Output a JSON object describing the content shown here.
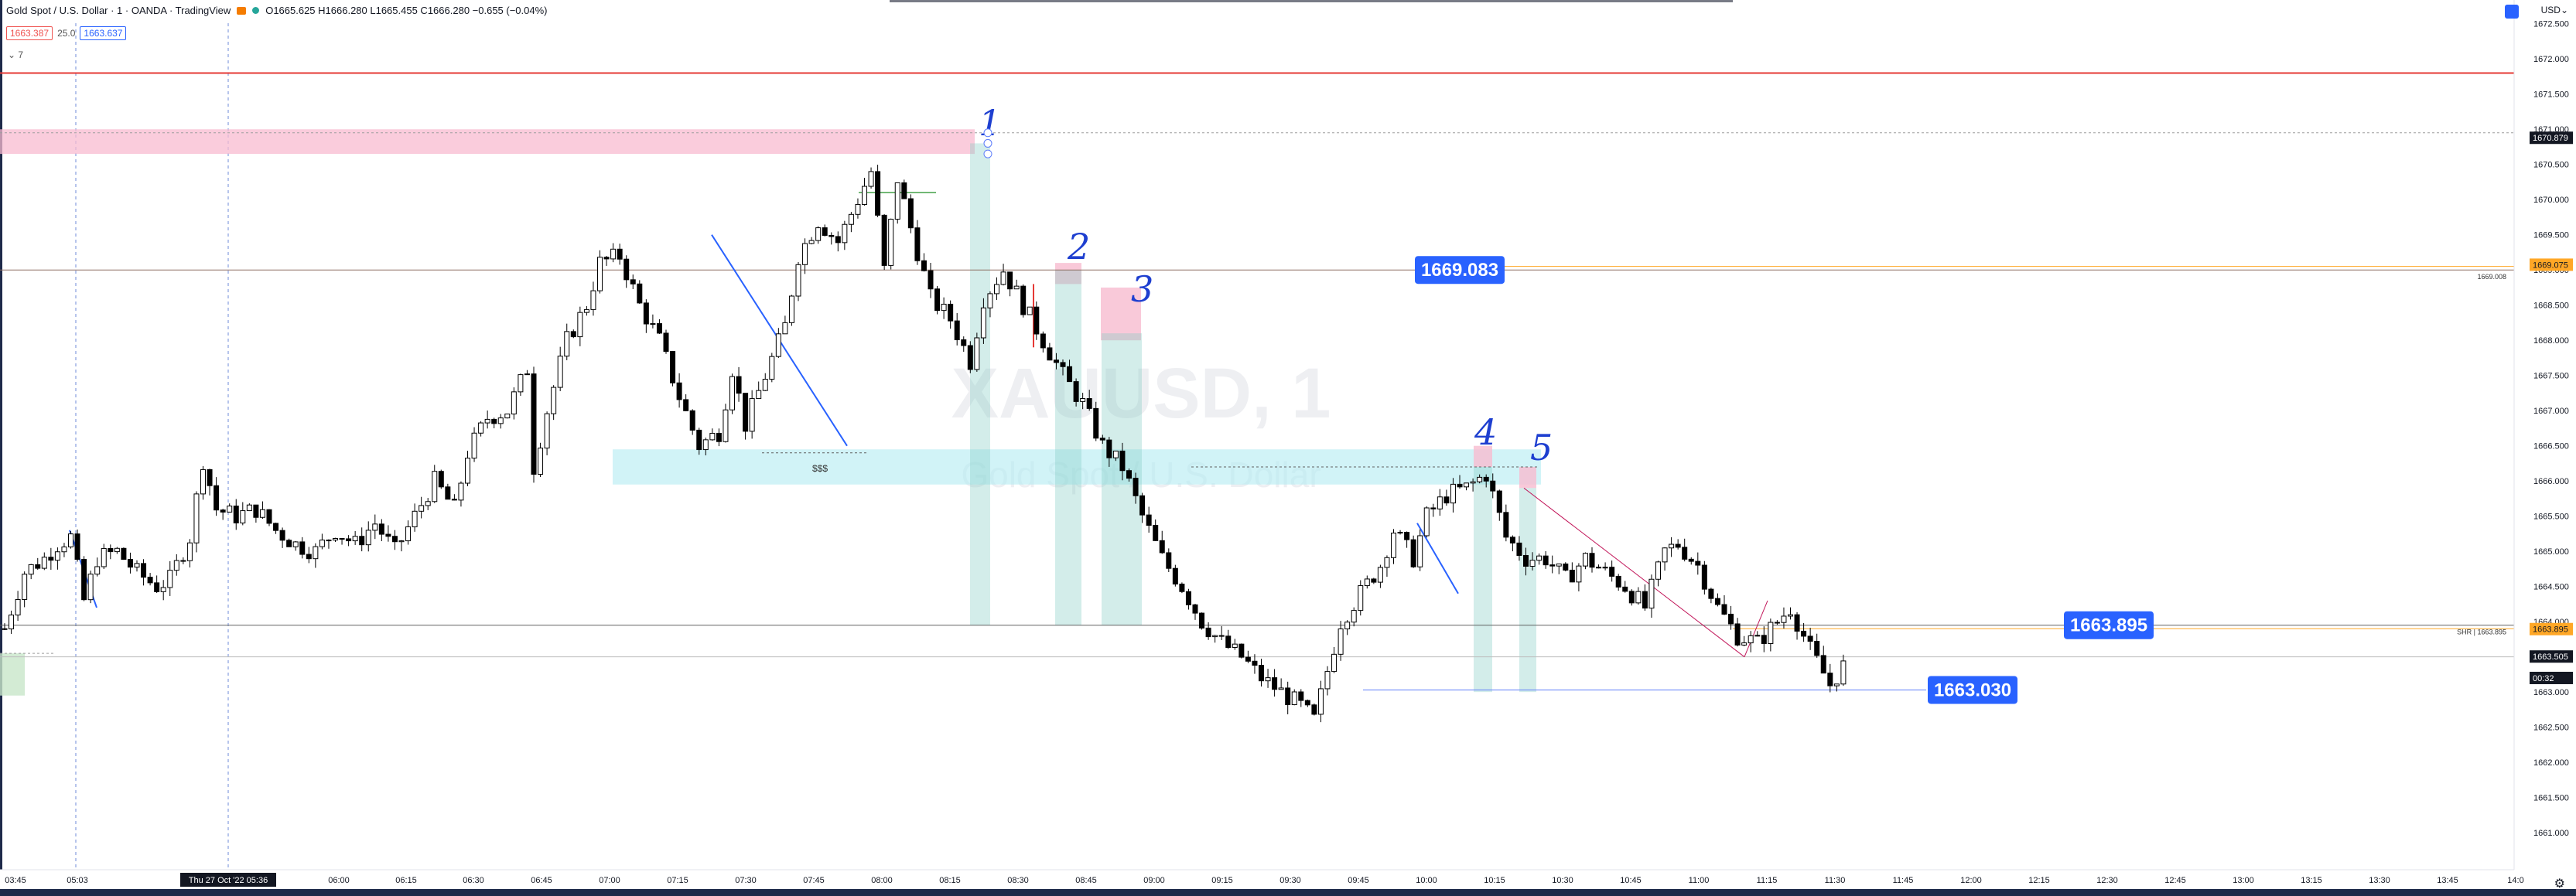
{
  "header": {
    "symbol_title": "Gold Spot / U.S. Dollar · 1 · OANDA · TradingView",
    "ohlc": "O1665.625 H1666.280 L1665.455 C1666.280 −0.655 (−0.04%)",
    "sell_price": "1663.387",
    "spread": "25.0",
    "buy_price": "1663.637",
    "collapse_label": "⌄ 7",
    "currency_menu": "USD⌄"
  },
  "watermark": {
    "symbol": "XAUUSD, 1",
    "description": "Gold Spot / U.S. Dollar"
  },
  "annotations": {
    "numbers": [
      "1",
      "2",
      "3",
      "4",
      "5"
    ],
    "liquidity_label": "$$$",
    "label_1669": "1669.083",
    "label_1663895": "1663.895",
    "label_1663030": "1663.030",
    "right_small_1": "1669.008",
    "right_small_2": "SHR | 1663.895"
  },
  "chart_data": {
    "type": "candlestick",
    "price_axis_ticks": [
      "1672.500",
      "1672.000",
      "1671.500",
      "1671.000",
      "1670.500",
      "1670.000",
      "1669.500",
      "1669.000",
      "1668.500",
      "1668.000",
      "1667.500",
      "1667.000",
      "1666.500",
      "1666.000",
      "1665.500",
      "1665.000",
      "1664.500",
      "1664.000",
      "1663.500",
      "1663.000",
      "1662.500",
      "1662.000",
      "1661.500",
      "1661.000"
    ],
    "price_labels": [
      {
        "text": "1670.879",
        "price": 1670.879,
        "style": "dark"
      },
      {
        "text": "1669.075",
        "price": 1669.075,
        "style": "orange"
      },
      {
        "text": "1663.895",
        "price": 1663.895,
        "style": "orange"
      },
      {
        "text": "1663.505",
        "price": 1663.505,
        "style": "current"
      },
      {
        "text": "00:32",
        "price": 1663.2,
        "style": "current"
      }
    ],
    "time_axis_ticks": [
      "03:45",
      "05:03",
      "Thu 27 Oct '22  05:36",
      "06:00",
      "06:15",
      "06:30",
      "06:45",
      "07:00",
      "07:15",
      "07:30",
      "07:45",
      "08:00",
      "08:15",
      "08:30",
      "08:45",
      "09:00",
      "09:15",
      "09:30",
      "09:45",
      "10:00",
      "10:15",
      "10:30",
      "10:45",
      "11:00",
      "11:15",
      "11:30",
      "11:45",
      "12:00",
      "12:15",
      "12:30",
      "12:45",
      "13:00",
      "13:15",
      "13:30",
      "13:45",
      "14:0"
    ],
    "ylim": [
      1660.65,
      1672.75
    ],
    "close_path": [
      [
        0,
        1663.9
      ],
      [
        3,
        1664.7
      ],
      [
        6,
        1664.9
      ],
      [
        8,
        1665.1
      ],
      [
        10,
        1665.2
      ],
      [
        12,
        1664.3
      ],
      [
        14,
        1664.9
      ],
      [
        17,
        1665.0
      ],
      [
        20,
        1664.7
      ],
      [
        23,
        1664.5
      ],
      [
        25,
        1664.6
      ],
      [
        28,
        1665.2
      ],
      [
        30,
        1666.3
      ],
      [
        32,
        1665.6
      ],
      [
        35,
        1665.5
      ],
      [
        38,
        1665.6
      ],
      [
        41,
        1665.3
      ],
      [
        44,
        1665.1
      ],
      [
        47,
        1665.0
      ],
      [
        50,
        1665.3
      ],
      [
        53,
        1665.1
      ],
      [
        56,
        1665.4
      ],
      [
        59,
        1665.0
      ],
      [
        62,
        1665.5
      ],
      [
        65,
        1666.0
      ],
      [
        68,
        1665.6
      ],
      [
        70,
        1666.4
      ],
      [
        73,
        1666.9
      ],
      [
        76,
        1667.0
      ],
      [
        79,
        1667.6
      ],
      [
        80,
        1666.2
      ],
      [
        82,
        1667.0
      ],
      [
        85,
        1668.0
      ],
      [
        88,
        1668.5
      ],
      [
        90,
        1669.1
      ],
      [
        93,
        1669.2
      ],
      [
        96,
        1668.5
      ],
      [
        99,
        1668.0
      ],
      [
        102,
        1667.2
      ],
      [
        105,
        1666.5
      ],
      [
        108,
        1666.7
      ],
      [
        110,
        1667.6
      ],
      [
        112,
        1666.8
      ],
      [
        115,
        1667.5
      ],
      [
        118,
        1668.2
      ],
      [
        120,
        1669.2
      ],
      [
        123,
        1669.7
      ],
      [
        126,
        1669.4
      ],
      [
        128,
        1669.8
      ],
      [
        131,
        1670.4
      ],
      [
        133,
        1669.0
      ],
      [
        135,
        1670.3
      ],
      [
        137,
        1669.6
      ],
      [
        140,
        1668.6
      ],
      [
        143,
        1668.3
      ],
      [
        146,
        1667.7
      ],
      [
        148,
        1668.6
      ],
      [
        151,
        1669.0
      ],
      [
        154,
        1668.5
      ],
      [
        157,
        1668.0
      ],
      [
        160,
        1667.5
      ],
      [
        163,
        1667.1
      ],
      [
        166,
        1666.5
      ],
      [
        169,
        1666.2
      ],
      [
        172,
        1665.5
      ],
      [
        175,
        1664.9
      ],
      [
        178,
        1664.5
      ],
      [
        181,
        1664.0
      ],
      [
        184,
        1663.7
      ],
      [
        187,
        1663.5
      ],
      [
        190,
        1663.2
      ],
      [
        193,
        1663.0
      ],
      [
        196,
        1662.8
      ],
      [
        198,
        1662.6
      ],
      [
        200,
        1663.3
      ],
      [
        202,
        1664.0
      ],
      [
        205,
        1664.4
      ],
      [
        208,
        1664.8
      ],
      [
        210,
        1665.3
      ],
      [
        213,
        1664.9
      ],
      [
        215,
        1665.5
      ],
      [
        218,
        1665.8
      ],
      [
        221,
        1665.9
      ],
      [
        224,
        1666.1
      ],
      [
        227,
        1665.2
      ],
      [
        230,
        1664.9
      ],
      [
        233,
        1664.9
      ],
      [
        236,
        1664.6
      ],
      [
        239,
        1664.9
      ],
      [
        242,
        1664.7
      ],
      [
        245,
        1664.5
      ],
      [
        248,
        1664.2
      ],
      [
        251,
        1665.0
      ],
      [
        253,
        1665.1
      ],
      [
        256,
        1664.8
      ],
      [
        259,
        1664.2
      ],
      [
        262,
        1663.8
      ],
      [
        265,
        1663.7
      ],
      [
        268,
        1664.0
      ],
      [
        270,
        1664.2
      ],
      [
        273,
        1663.6
      ],
      [
        276,
        1663.1
      ],
      [
        279,
        1663.5
      ]
    ]
  }
}
